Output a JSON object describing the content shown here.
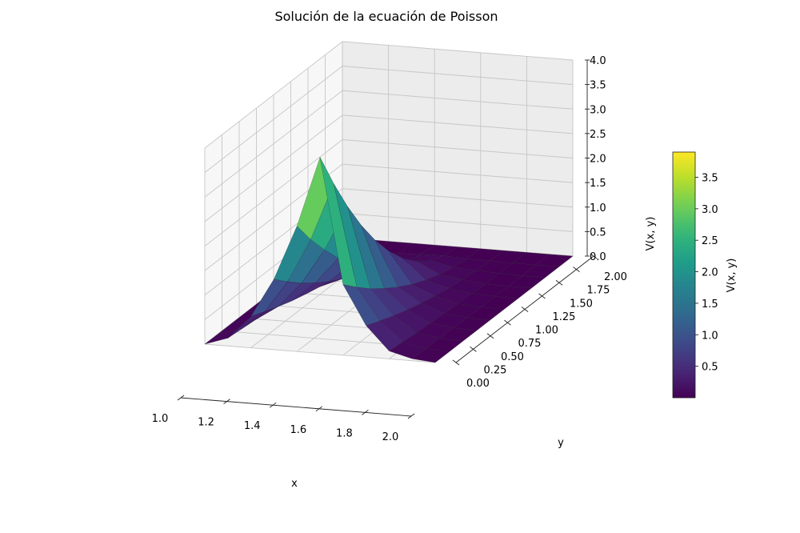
{
  "chart_data": {
    "type": "surface3d",
    "title": "Solución de la ecuación de Poisson",
    "xlabel": "x",
    "ylabel": "y",
    "zlabel": "V(x, y)",
    "colorbar_label": "V(x, y)",
    "colormap": "viridis",
    "xlim": [
      1.0,
      2.0
    ],
    "ylim": [
      0.0,
      2.0
    ],
    "zlim": [
      0.0,
      4.0
    ],
    "x_ticks": [
      "1.0",
      "1.2",
      "1.4",
      "1.6",
      "1.8",
      "2.0"
    ],
    "y_ticks": [
      "0.00",
      "0.25",
      "0.50",
      "0.75",
      "1.00",
      "1.25",
      "1.50",
      "1.75",
      "2.00"
    ],
    "z_ticks": [
      "0.0",
      "0.5",
      "1.0",
      "1.5",
      "2.0",
      "2.5",
      "3.0",
      "3.5",
      "4.0"
    ],
    "colorbar_ticks": [
      "0.5",
      "1.0",
      "1.5",
      "2.0",
      "2.5",
      "3.0",
      "3.5"
    ],
    "colorbar_range": [
      0.0,
      3.9
    ],
    "grid": true,
    "surface": {
      "x_grid": [
        1.0,
        1.1,
        1.2,
        1.3,
        1.4,
        1.5,
        1.6,
        1.7,
        1.8,
        1.9,
        2.0
      ],
      "y_grid": [
        0.0,
        0.2,
        0.4,
        0.6,
        0.8,
        1.0,
        1.2,
        1.4,
        1.6,
        1.8,
        2.0
      ],
      "z_values": [
        [
          0.0,
          0.16,
          0.64,
          1.44,
          2.56,
          4.0,
          1.44,
          0.64,
          0.16,
          0.04,
          0.0
        ],
        [
          0.0,
          0.13,
          0.52,
          1.17,
          2.07,
          3.24,
          1.17,
          0.52,
          0.13,
          0.03,
          0.0
        ],
        [
          0.0,
          0.1,
          0.41,
          0.92,
          1.64,
          2.56,
          0.92,
          0.41,
          0.1,
          0.03,
          0.0
        ],
        [
          0.0,
          0.08,
          0.31,
          0.71,
          1.25,
          1.96,
          0.71,
          0.31,
          0.08,
          0.02,
          0.0
        ],
        [
          0.0,
          0.06,
          0.23,
          0.52,
          0.92,
          1.44,
          0.52,
          0.23,
          0.06,
          0.01,
          0.0
        ],
        [
          0.0,
          0.04,
          0.16,
          0.36,
          0.64,
          1.0,
          0.36,
          0.16,
          0.04,
          0.01,
          0.0
        ],
        [
          0.0,
          0.03,
          0.1,
          0.23,
          0.41,
          0.64,
          0.23,
          0.1,
          0.03,
          0.01,
          0.0
        ],
        [
          0.0,
          0.01,
          0.06,
          0.13,
          0.23,
          0.36,
          0.13,
          0.06,
          0.01,
          0.0,
          0.0
        ],
        [
          0.0,
          0.01,
          0.03,
          0.06,
          0.1,
          0.16,
          0.06,
          0.03,
          0.01,
          0.0,
          0.0
        ],
        [
          0.0,
          0.0,
          0.01,
          0.01,
          0.03,
          0.04,
          0.01,
          0.01,
          0.0,
          0.0,
          0.0
        ],
        [
          0.0,
          0.0,
          0.0,
          0.0,
          0.0,
          0.0,
          0.0,
          0.0,
          0.0,
          0.0,
          0.0
        ]
      ]
    }
  }
}
